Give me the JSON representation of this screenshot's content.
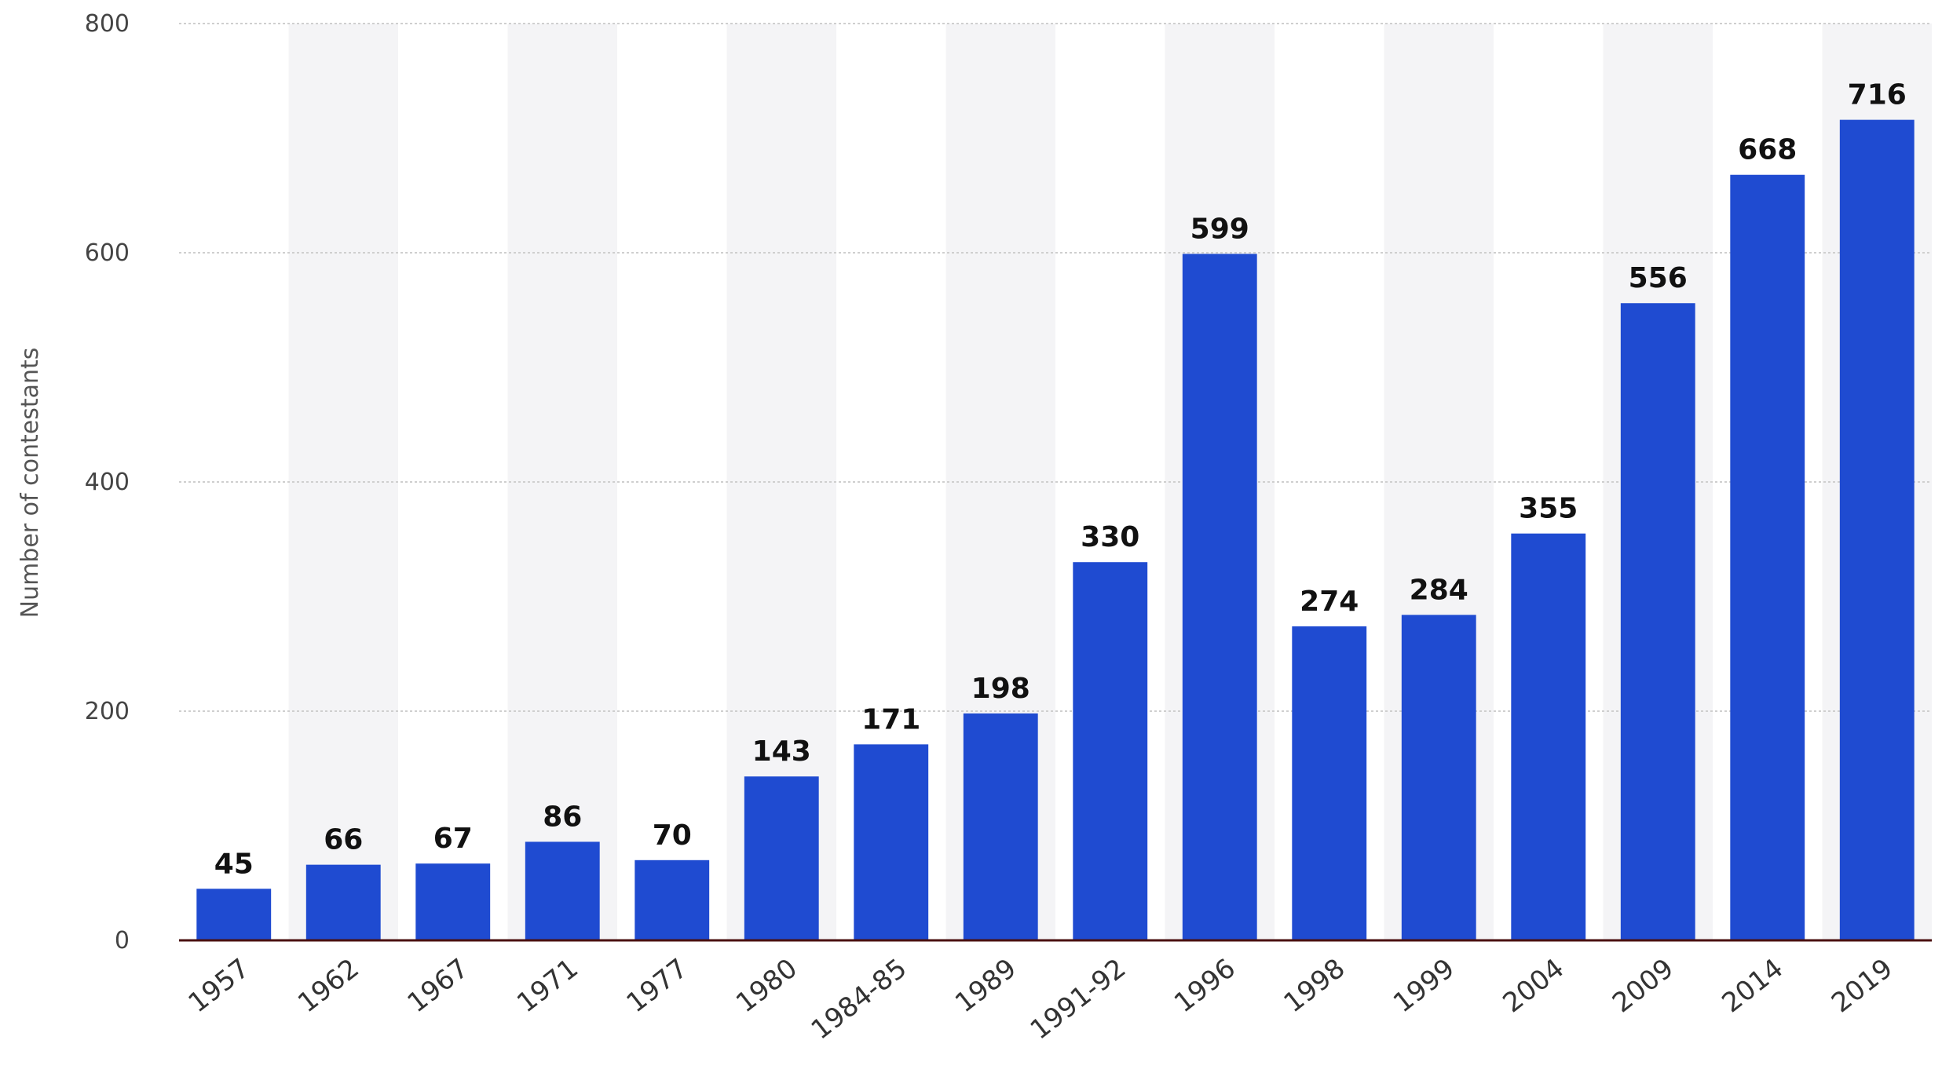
{
  "chart_data": {
    "type": "bar",
    "title": "",
    "xlabel": "",
    "ylabel": "Number of contestants",
    "ylim": [
      0,
      800
    ],
    "yticks": [
      0,
      200,
      400,
      600,
      800
    ],
    "grid": true,
    "colors": {
      "bar": "#1f4bd1",
      "grid": "#cfcfcf",
      "band": "#f4f4f6",
      "axis": "#4a1010"
    },
    "categories": [
      "1957",
      "1962",
      "1967",
      "1971",
      "1977",
      "1980",
      "1984-85",
      "1989",
      "1991-92",
      "1996",
      "1998",
      "1999",
      "2004",
      "2009",
      "2014",
      "2019"
    ],
    "values": [
      45,
      66,
      67,
      86,
      70,
      143,
      171,
      198,
      330,
      599,
      274,
      284,
      355,
      556,
      668,
      716
    ]
  }
}
